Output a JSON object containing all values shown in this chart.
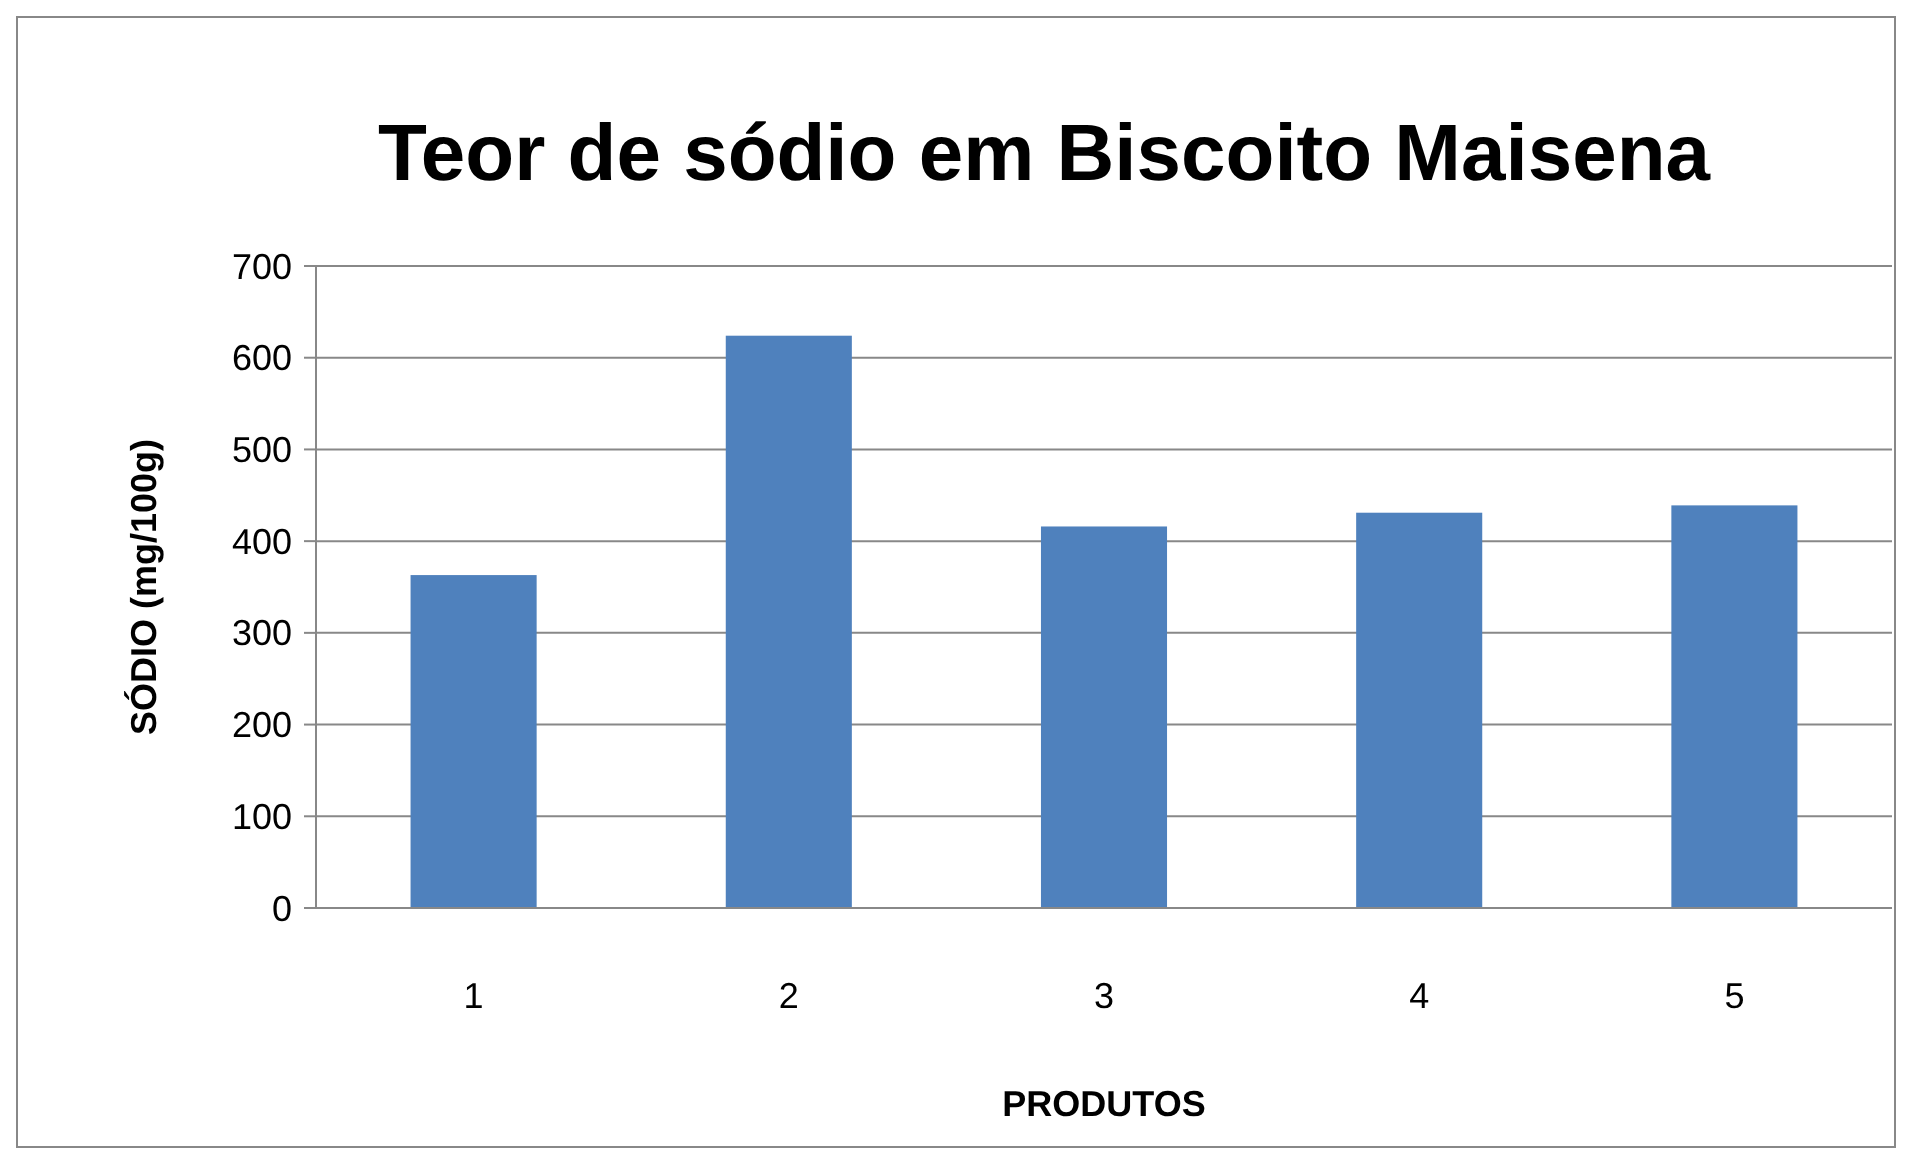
{
  "chart_data": {
    "type": "bar",
    "title": "Teor de sódio em Biscoito Maisena",
    "xlabel": "PRODUTOS",
    "ylabel": "SÓDIO (mg/100g)",
    "categories": [
      "1",
      "2",
      "3",
      "4",
      "5"
    ],
    "values": [
      363,
      624,
      416,
      431,
      439
    ],
    "color": "#4f81bd",
    "ylim": [
      0,
      700
    ],
    "yticks": [
      0,
      100,
      200,
      300,
      400,
      500,
      600,
      700
    ],
    "grid": "y"
  }
}
